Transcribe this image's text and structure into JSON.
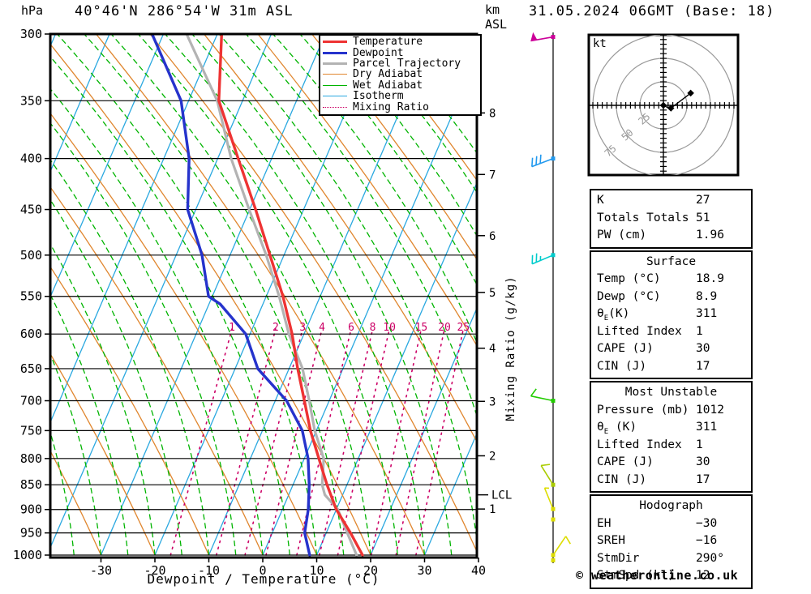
{
  "meta": {
    "title_left": "40°46'N 286°54'W 31m ASL",
    "title_right": "31.05.2024 06GMT (Base: 18)",
    "pressure_unit_label": "hPa",
    "km_label": "km",
    "asl_label": "ASL"
  },
  "axes": {
    "xlabel": "Dewpoint / Temperature (°C)",
    "x_ticks": [
      -30,
      -20,
      -10,
      0,
      10,
      20,
      30,
      40
    ],
    "pressure_ticks": [
      300,
      350,
      400,
      450,
      500,
      550,
      600,
      650,
      700,
      750,
      800,
      850,
      900,
      950,
      1000
    ],
    "km_ticks": [
      {
        "km": 8,
        "p": 360
      },
      {
        "km": 7,
        "p": 415
      },
      {
        "km": 6,
        "p": 478
      },
      {
        "km": 5,
        "p": 545
      },
      {
        "km": 4,
        "p": 620
      },
      {
        "km": 3,
        "p": 701
      },
      {
        "km": 2,
        "p": 795
      },
      {
        "km": 1,
        "p": 899
      }
    ],
    "lcl": {
      "label": "LCL",
      "p": 870
    },
    "mixing_axis_label": "Mixing Ratio (g/kg)"
  },
  "legend": {
    "items": [
      {
        "label": "Temperature",
        "color": "#ee3333",
        "weight": 3,
        "dash": "solid"
      },
      {
        "label": "Dewpoint",
        "color": "#2633cc",
        "weight": 3,
        "dash": "solid"
      },
      {
        "label": "Parcel Trajectory",
        "color": "#b3b3b3",
        "weight": 3,
        "dash": "solid"
      },
      {
        "label": "Dry Adiabat",
        "color": "#e0862e",
        "weight": 1.5,
        "dash": "solid"
      },
      {
        "label": "Wet Adiabat",
        "color": "#00b400",
        "weight": 1.5,
        "dash": "solid"
      },
      {
        "label": "Isotherm",
        "color": "#2aa8e0",
        "weight": 1.5,
        "dash": "solid"
      },
      {
        "label": "Mixing Ratio",
        "color": "#cc0066",
        "weight": 1.8,
        "dash": "dotted"
      }
    ]
  },
  "chart_data": {
    "type": "skewt_log_p_sounding",
    "title": "40°46'N 286°54'W 31m ASL",
    "datetime": "31.05.2024 06GMT (Base: 18)",
    "pressure_axis": {
      "unit": "hPa",
      "min": 300,
      "max": 1000,
      "scale": "log"
    },
    "temp_axis": {
      "unit": "°C",
      "min": -40,
      "max": 40,
      "isotherm_step": 10
    },
    "grid": {
      "dry_adiabat_step_c": 10,
      "wet_adiabat_step_c": 5
    },
    "series": {
      "temperature": [
        [
          300,
          -49.2
        ],
        [
          350,
          -44.4
        ],
        [
          400,
          -36.2
        ],
        [
          450,
          -28.9
        ],
        [
          500,
          -22.6
        ],
        [
          550,
          -16.9
        ],
        [
          600,
          -12.2
        ],
        [
          650,
          -8.4
        ],
        [
          700,
          -4.6
        ],
        [
          750,
          -1.1
        ],
        [
          800,
          2.7
        ],
        [
          850,
          6.3
        ],
        [
          900,
          10.0
        ],
        [
          950,
          14.5
        ],
        [
          1000,
          18.5
        ]
      ],
      "dewpoint": [
        [
          300,
          -62.1
        ],
        [
          350,
          -51.4
        ],
        [
          400,
          -45.3
        ],
        [
          450,
          -41.5
        ],
        [
          500,
          -35.2
        ],
        [
          550,
          -30.7
        ],
        [
          560,
          -27.9
        ],
        [
          600,
          -20.8
        ],
        [
          650,
          -15.8
        ],
        [
          700,
          -7.9
        ],
        [
          750,
          -2.6
        ],
        [
          800,
          0.7
        ],
        [
          850,
          3.0
        ],
        [
          900,
          4.8
        ],
        [
          950,
          6.0
        ],
        [
          1000,
          8.7
        ]
      ],
      "parcel": [
        [
          300,
          -55.7
        ],
        [
          350,
          -44.7
        ],
        [
          400,
          -37.5
        ],
        [
          450,
          -30.1
        ],
        [
          500,
          -23.3
        ],
        [
          550,
          -17.6
        ],
        [
          600,
          -12.8
        ],
        [
          650,
          -7.5
        ],
        [
          700,
          -3.7
        ],
        [
          750,
          -0.3
        ],
        [
          800,
          3.6
        ],
        [
          850,
          5.4
        ],
        [
          870,
          6.7
        ],
        [
          900,
          10.3
        ],
        [
          950,
          13.9
        ],
        [
          1000,
          17.4
        ]
      ]
    },
    "mixing_ratio_lines": [
      {
        "w": 1,
        "td_1000": -17.1,
        "td_600": -23.0
      },
      {
        "w": 2,
        "td_1000": -8.6,
        "td_600": -14.9
      },
      {
        "w": 3,
        "td_1000": -3.3,
        "td_600": -9.9
      },
      {
        "w": 4,
        "td_1000": 0.6,
        "td_600": -6.3
      },
      {
        "w": 6,
        "td_1000": 6.3,
        "td_600": -0.9
      },
      {
        "w": 8,
        "td_1000": 10.5,
        "td_600": 3.1
      },
      {
        "w": 10,
        "td_1000": 13.9,
        "td_600": 6.2
      },
      {
        "w": 15,
        "td_1000": 20.1,
        "td_600": 12.1
      },
      {
        "w": 20,
        "td_1000": 24.7,
        "td_600": 16.4
      },
      {
        "w": 25,
        "td_1000": 28.4,
        "td_600": 19.9
      }
    ],
    "wind_barbs": [
      {
        "p": 302,
        "speed_kt": 50,
        "dir_deg": 260,
        "color": "#cc0099"
      },
      {
        "p": 400,
        "speed_kt": 30,
        "dir_deg": 249,
        "color": "#2299ee"
      },
      {
        "p": 500,
        "speed_kt": 25,
        "dir_deg": 247,
        "color": "#00cccc"
      },
      {
        "p": 700,
        "speed_kt": 10,
        "dir_deg": 282,
        "color": "#22cc00"
      },
      {
        "p": 850,
        "speed_kt": 10,
        "dir_deg": 328,
        "color": "#aacc00"
      },
      {
        "p": 899,
        "speed_kt": 5,
        "dir_deg": 338,
        "color": "#dddd00"
      },
      {
        "p": 921,
        "speed_kt": 0,
        "dir_deg": 0,
        "color": "#dddd00"
      },
      {
        "p": 1000,
        "speed_kt": 10,
        "dir_deg": 34,
        "color": "#dddd00"
      },
      {
        "p": 1012,
        "speed_kt": 0,
        "dir_deg": 0,
        "color": "#dddd00"
      }
    ],
    "hodograph": {
      "unit_label": "kt",
      "rings_kt": [
        25,
        50,
        75
      ],
      "tick_step_kt": 5,
      "trace_kt": [
        [
          0,
          0
        ],
        [
          4,
          -2
        ],
        [
          8,
          -3
        ],
        [
          29,
          13
        ]
      ],
      "marker_points_kt": [
        [
          0,
          0
        ],
        [
          8,
          -3
        ],
        [
          29,
          13
        ]
      ]
    }
  },
  "tables": [
    {
      "rows": [
        [
          "K",
          "27"
        ],
        [
          "Totals Totals",
          "51"
        ],
        [
          "PW (cm)",
          "1.96"
        ]
      ]
    },
    {
      "header": "Surface",
      "rows": [
        [
          "Temp (°C)",
          "18.9"
        ],
        [
          "Dewp (°C)",
          "8.9"
        ],
        [
          {
            "pre": "θ",
            "sub": "E",
            "post": "(K)"
          },
          "311"
        ],
        [
          "Lifted Index",
          "1"
        ],
        [
          "CAPE (J)",
          "30"
        ],
        [
          "CIN (J)",
          "17"
        ]
      ]
    },
    {
      "header": "Most Unstable",
      "rows": [
        [
          "Pressure (mb)",
          "1012"
        ],
        [
          {
            "pre": "θ",
            "sub": "E",
            "post": " (K)"
          },
          "311"
        ],
        [
          "Lifted Index",
          "1"
        ],
        [
          "CAPE (J)",
          "30"
        ],
        [
          "CIN (J)",
          "17"
        ]
      ]
    },
    {
      "header": "Hodograph",
      "rows": [
        [
          "EH",
          "−30"
        ],
        [
          "SREH",
          "−16"
        ],
        [
          "StmDir",
          "290°"
        ],
        [
          "StmSpd (kt)",
          "12"
        ]
      ]
    }
  ],
  "footer": {
    "copyright": "© weatheronline.co.uk"
  },
  "colors": {
    "temperature": "#ee3333",
    "dewpoint": "#2633cc",
    "parcel": "#b3b3b3",
    "dry_adiabat": "#e0862e",
    "wet_adiabat": "#00b400",
    "isotherm": "#2aa8e0",
    "mixing_ratio": "#cc0066",
    "frame": "#000000",
    "hodograph_rings": "#999999"
  }
}
